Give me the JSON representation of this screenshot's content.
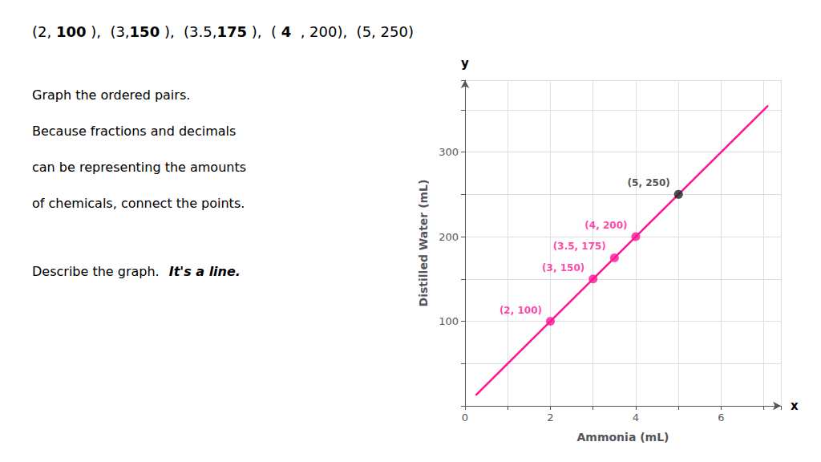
{
  "chart_data": {
    "type": "scatter",
    "header": [
      {
        "text": "(2, ",
        "color": "#000000",
        "bold": false
      },
      {
        "text": "100",
        "color": "#FF1493",
        "bold": true
      },
      {
        "text": " ),  (3,",
        "color": "#000000",
        "bold": false
      },
      {
        "text": "150",
        "color": "#FF1493",
        "bold": true
      },
      {
        "text": " ),  (3.5,",
        "color": "#000000",
        "bold": false
      },
      {
        "text": "175",
        "color": "#FF1493",
        "bold": true
      },
      {
        "text": " ),  ( ",
        "color": "#000000",
        "bold": false
      },
      {
        "text": "4",
        "color": "#FF1493",
        "bold": true
      },
      {
        "text": "  , 200),  (5, 250)",
        "color": "#000000",
        "bold": false
      }
    ],
    "body": [
      "Graph the ordered pairs.",
      "Because fractions and decimals",
      "can be representing the amounts",
      "of chemicals, connect the points."
    ],
    "question": "Describe the graph.",
    "answer": {
      "text": "It's a line.",
      "color": "#FF1493"
    },
    "xlabel": "Ammonia (mL)",
    "ylabel": "Distilled Water (mL)",
    "x_arrow_label": "x",
    "y_arrow_label": "y",
    "xlim": [
      0,
      7.4
    ],
    "ylim": [
      0,
      385
    ],
    "xticks": [
      0,
      {
        "value": 1,
        "label": ""
      },
      2,
      {
        "value": 3,
        "label": ""
      },
      4,
      {
        "value": 5,
        "label": ""
      },
      6,
      {
        "value": 7,
        "label": ""
      }
    ],
    "yticks": [
      {
        "value": 0,
        "label": ""
      },
      {
        "value": 50,
        "label": ""
      },
      100,
      {
        "value": 150,
        "label": ""
      },
      200,
      {
        "value": 250,
        "label": ""
      },
      300,
      {
        "value": 350,
        "label": ""
      }
    ],
    "grid": true,
    "series": [
      {
        "type": "line",
        "color": "#FF1493",
        "x": [
          0.25,
          7.1
        ],
        "values": [
          12.5,
          355
        ]
      },
      {
        "type": "scatter",
        "x": [
          2.0,
          3.0,
          3.5,
          4.0,
          5.0
        ],
        "values": [
          100,
          150,
          175,
          200,
          250
        ],
        "colors": [
          "#FF1493",
          "#FF1493",
          "#FF1493",
          "#FF1493",
          "#222222"
        ],
        "data_labels": true,
        "value_labels": [
          "(2, 100)",
          "(3, 150)",
          "(3.5, 175)",
          "(4, 200)",
          "(5, 250)"
        ]
      }
    ]
  }
}
